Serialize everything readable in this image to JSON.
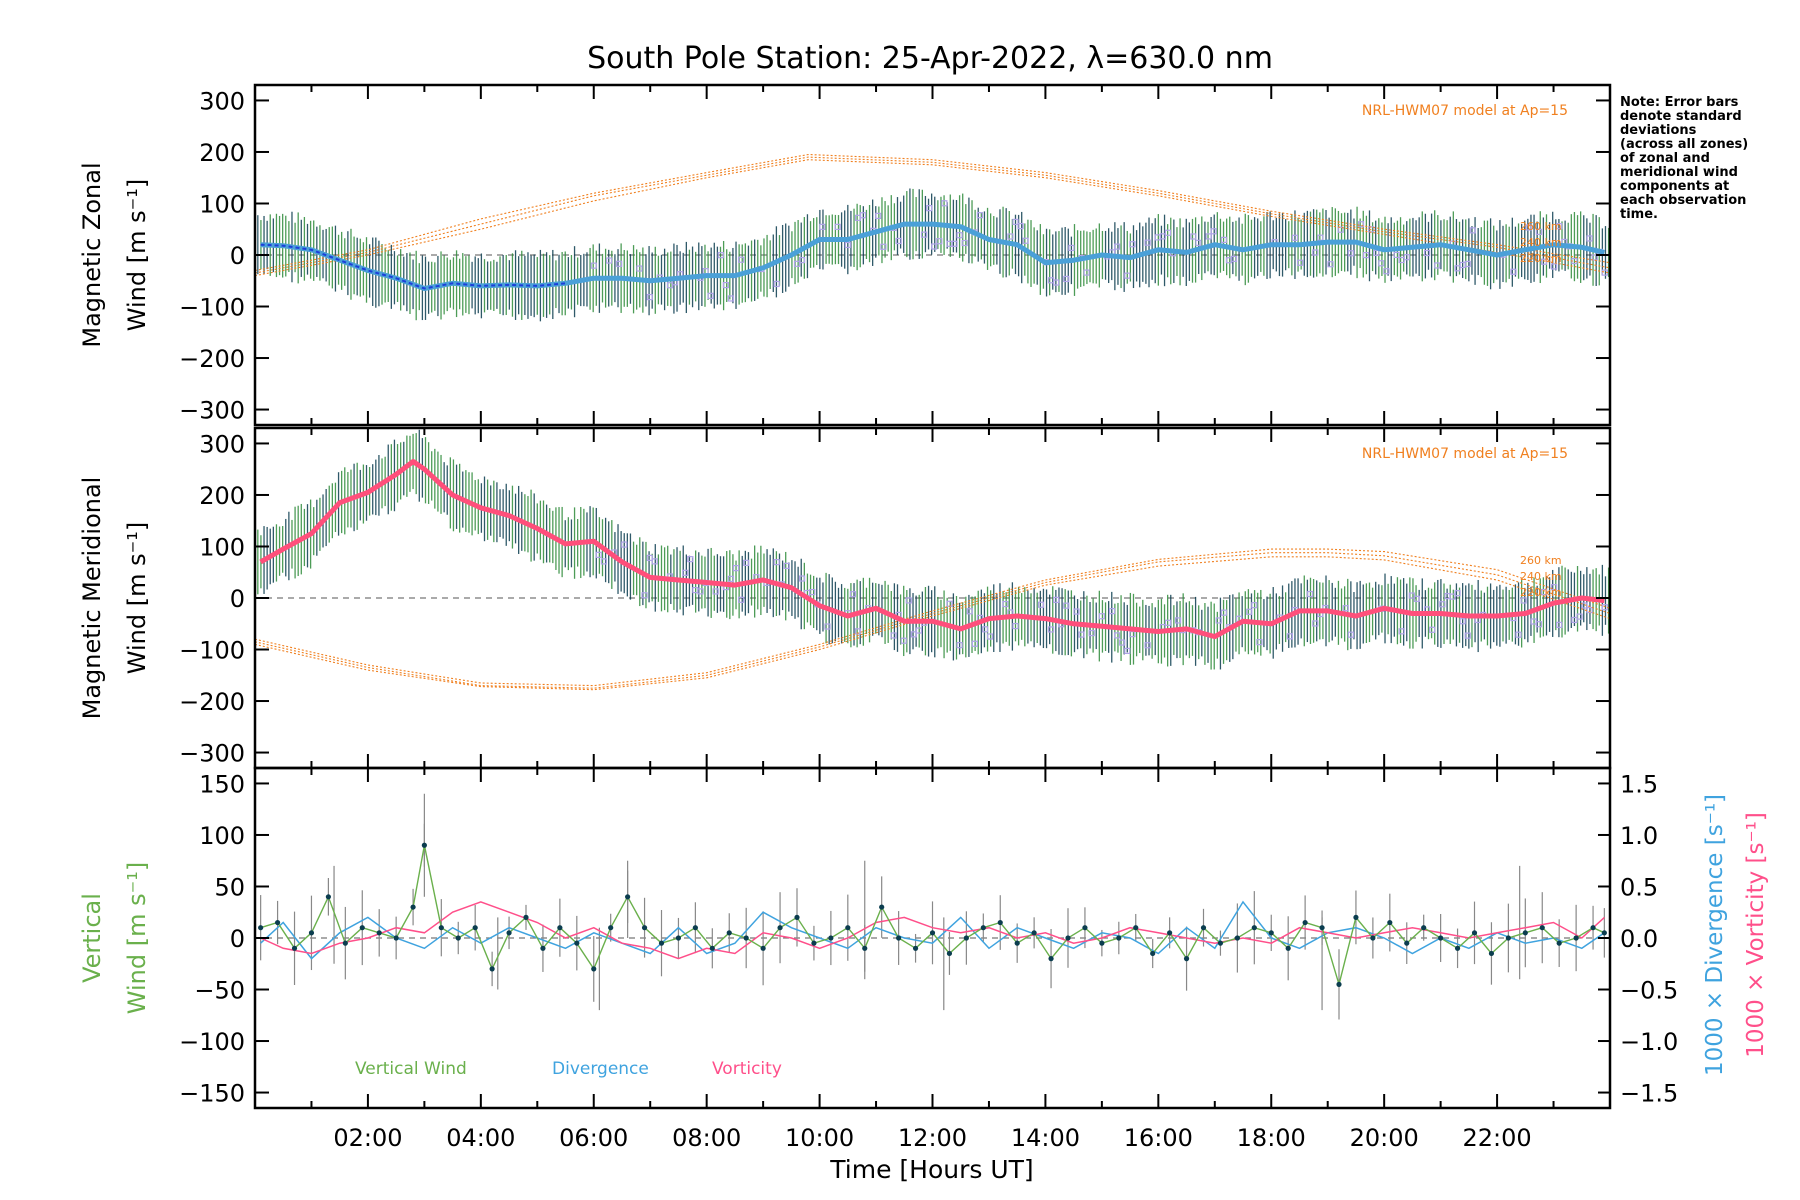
{
  "title": "South Pole Station: 25-Apr-2022, λ=630.0 nm",
  "note_lines": [
    "Note: Error bars",
    "denote standard",
    "deviations",
    "(across all zones)",
    "of zonal and",
    "meridional wind",
    "components at",
    "each observation",
    "time."
  ],
  "colors": {
    "zonal_line": "#4aa0d8",
    "zonal_highlight": "#1d3fd9",
    "meridional_line": "#ff4f7b",
    "model": "#f08020",
    "vertical": "#6ab04c",
    "divergence": "#3fa3df",
    "vorticity": "#ff4f8a",
    "errorbar_dark": "#0b3d4f",
    "errorbar_green": "#2e8b3a",
    "scatter": "#b0a4e8"
  },
  "chart_data": [
    {
      "type": "line",
      "panel": "zonal",
      "ylabel_line1": "Magnetic Zonal",
      "ylabel_line2": "Wind [m s⁻¹]",
      "ylim": [
        -330,
        330
      ],
      "xlim": [
        0,
        24
      ],
      "yticks": [
        "300",
        "200",
        "100",
        "0",
        "−100",
        "−200",
        "−300"
      ],
      "ytick_values": [
        300,
        200,
        100,
        0,
        -100,
        -200,
        -300
      ],
      "model_label": "NRL-HWM07 model at Ap=15",
      "model_alt_labels": [
        "260 km",
        "240 km",
        "220 km"
      ],
      "series": [
        {
          "name": "Zonal wind",
          "x": [
            0.1,
            0.5,
            1.0,
            1.5,
            2.0,
            2.5,
            3.0,
            3.5,
            4.0,
            4.5,
            5.0,
            5.5,
            6.0,
            6.5,
            7.0,
            7.5,
            8.0,
            8.5,
            9.0,
            9.5,
            10.0,
            10.5,
            11.0,
            11.5,
            12.0,
            12.5,
            13.0,
            13.5,
            14.0,
            14.5,
            15.0,
            15.5,
            16.0,
            16.5,
            17.0,
            17.5,
            18.0,
            18.5,
            19.0,
            19.5,
            20.0,
            20.5,
            21.0,
            21.5,
            22.0,
            22.5,
            23.0,
            23.5,
            23.9
          ],
          "y": [
            20,
            18,
            10,
            -10,
            -30,
            -45,
            -65,
            -55,
            -60,
            -58,
            -60,
            -55,
            -45,
            -45,
            -50,
            -45,
            -40,
            -40,
            -25,
            0,
            30,
            30,
            45,
            60,
            60,
            55,
            30,
            20,
            -15,
            -10,
            0,
            -5,
            10,
            5,
            20,
            10,
            20,
            20,
            25,
            25,
            10,
            15,
            20,
            10,
            0,
            10,
            20,
            15,
            5
          ]
        }
      ],
      "model_curves": [
        {
          "name": "260 km",
          "x": [
            0.0,
            2,
            4,
            6,
            8,
            9.8,
            12,
            14,
            16,
            18,
            20,
            22,
            24
          ],
          "y": [
            -30,
            10,
            70,
            120,
            160,
            195,
            185,
            160,
            125,
            85,
            50,
            20,
            -15
          ]
        },
        {
          "name": "240 km",
          "x": [
            0.0,
            2,
            4,
            6,
            8,
            9.8,
            12,
            14,
            16,
            18,
            20,
            22,
            24
          ],
          "y": [
            -35,
            5,
            60,
            115,
            155,
            190,
            180,
            155,
            120,
            80,
            45,
            15,
            -25
          ]
        },
        {
          "name": "220 km",
          "x": [
            0.0,
            2,
            4,
            6,
            8,
            9.8,
            12,
            14,
            16,
            18,
            20,
            22,
            24
          ],
          "y": [
            -40,
            0,
            50,
            105,
            150,
            185,
            175,
            150,
            115,
            75,
            40,
            5,
            -35
          ]
        }
      ]
    },
    {
      "type": "line",
      "panel": "meridional",
      "ylabel_line1": "Magnetic Meridional",
      "ylabel_line2": "Wind [m s⁻¹]",
      "ylim": [
        -330,
        330
      ],
      "xlim": [
        0,
        24
      ],
      "yticks": [
        "300",
        "200",
        "100",
        "0",
        "−100",
        "−200",
        "−300"
      ],
      "ytick_values": [
        300,
        200,
        100,
        0,
        -100,
        -200,
        -300
      ],
      "model_label": "NRL-HWM07 model at Ap=15",
      "model_alt_labels": [
        "260 km",
        "240 km",
        "220 km"
      ],
      "series": [
        {
          "name": "Meridional wind",
          "x": [
            0.1,
            0.5,
            1.0,
            1.5,
            2.0,
            2.5,
            2.8,
            3.0,
            3.5,
            4.0,
            4.5,
            5.0,
            5.5,
            6.0,
            6.5,
            7.0,
            7.5,
            8.0,
            8.5,
            9.0,
            9.5,
            10.0,
            10.5,
            11.0,
            11.5,
            12.0,
            12.5,
            13.0,
            13.5,
            14.0,
            14.5,
            15.0,
            15.5,
            16.0,
            16.5,
            17.0,
            17.5,
            18.0,
            18.5,
            19.0,
            19.5,
            20.0,
            20.5,
            21.0,
            21.5,
            22.0,
            22.5,
            23.0,
            23.5,
            23.9
          ],
          "y": [
            70,
            95,
            125,
            185,
            205,
            240,
            265,
            250,
            200,
            175,
            160,
            135,
            105,
            110,
            70,
            40,
            35,
            30,
            25,
            35,
            20,
            -15,
            -35,
            -20,
            -45,
            -45,
            -60,
            -40,
            -35,
            -40,
            -50,
            -55,
            -60,
            -65,
            -60,
            -75,
            -45,
            -50,
            -25,
            -25,
            -35,
            -20,
            -30,
            -30,
            -35,
            -35,
            -30,
            -10,
            0,
            -5
          ]
        }
      ],
      "model_curves": [
        {
          "name": "260 km",
          "x": [
            0.0,
            2,
            4,
            6,
            8,
            10,
            12,
            14,
            16,
            18,
            19,
            20,
            22,
            24
          ],
          "y": [
            -80,
            -130,
            -165,
            -170,
            -145,
            -90,
            -25,
            35,
            75,
            95,
            95,
            90,
            55,
            -20
          ]
        },
        {
          "name": "240 km",
          "x": [
            0.0,
            2,
            4,
            6,
            8,
            10,
            12,
            14,
            16,
            18,
            19,
            20,
            22,
            24
          ],
          "y": [
            -85,
            -135,
            -170,
            -175,
            -150,
            -95,
            -30,
            30,
            70,
            88,
            88,
            82,
            45,
            -30
          ]
        },
        {
          "name": "220 km",
          "x": [
            0.0,
            2,
            4,
            6,
            8,
            10,
            12,
            14,
            16,
            18,
            19,
            20,
            22,
            24
          ],
          "y": [
            -90,
            -140,
            -172,
            -178,
            -155,
            -100,
            -35,
            25,
            62,
            80,
            80,
            74,
            35,
            -40
          ]
        }
      ]
    },
    {
      "type": "line",
      "panel": "vertical",
      "ylabel_line1": "Vertical",
      "ylabel_line2": "Wind [m s⁻¹]",
      "ylim": [
        -165,
        165
      ],
      "xlim": [
        0,
        24
      ],
      "yticks": [
        "150",
        "100",
        "50",
        "0",
        "−50",
        "−100",
        "−150"
      ],
      "ytick_values": [
        150,
        100,
        50,
        0,
        -50,
        -100,
        -150
      ],
      "y2label_divergence": "1000 × Divergence [s⁻¹]",
      "y2label_vorticity": "1000 × Vorticity [s⁻¹]",
      "y2lim": [
        -1.65,
        1.65
      ],
      "y2ticks": [
        "1.5",
        "1.0",
        "0.5",
        "0.0",
        "−0.5",
        "−1.0",
        "−1.5"
      ],
      "y2tick_values": [
        1.5,
        1.0,
        0.5,
        0.0,
        -0.5,
        -1.0,
        -1.5
      ],
      "legend": [
        "Vertical Wind",
        "Divergence",
        "Vorticity"
      ],
      "xlabel": "Time [Hours UT]",
      "xticks": [
        "02:00",
        "04:00",
        "06:00",
        "08:00",
        "10:00",
        "12:00",
        "14:00",
        "16:00",
        "18:00",
        "20:00",
        "22:00"
      ],
      "xtick_values": [
        2,
        4,
        6,
        8,
        10,
        12,
        14,
        16,
        18,
        20,
        22
      ],
      "series": [
        {
          "name": "Vertical Wind",
          "x": [
            0.1,
            0.4,
            0.7,
            1.0,
            1.3,
            1.6,
            1.9,
            2.2,
            2.5,
            2.8,
            3.0,
            3.3,
            3.6,
            3.9,
            4.2,
            4.5,
            4.8,
            5.1,
            5.4,
            5.7,
            6.0,
            6.3,
            6.6,
            6.9,
            7.2,
            7.5,
            7.8,
            8.1,
            8.4,
            8.7,
            9.0,
            9.3,
            9.6,
            9.9,
            10.2,
            10.5,
            10.8,
            11.1,
            11.4,
            11.7,
            12.0,
            12.3,
            12.6,
            12.9,
            13.2,
            13.5,
            13.8,
            14.1,
            14.4,
            14.7,
            15.0,
            15.3,
            15.6,
            15.9,
            16.2,
            16.5,
            16.8,
            17.1,
            17.4,
            17.7,
            18.0,
            18.3,
            18.6,
            18.9,
            19.2,
            19.5,
            19.8,
            20.1,
            20.4,
            20.7,
            21.0,
            21.3,
            21.6,
            21.9,
            22.2,
            22.5,
            22.8,
            23.1,
            23.4,
            23.7,
            23.9
          ],
          "y": [
            10,
            15,
            -10,
            5,
            40,
            -5,
            10,
            5,
            0,
            30,
            90,
            10,
            0,
            10,
            -30,
            5,
            20,
            -10,
            10,
            -5,
            -30,
            10,
            40,
            10,
            -5,
            0,
            10,
            -10,
            5,
            0,
            -10,
            10,
            20,
            -5,
            0,
            10,
            -10,
            30,
            0,
            -10,
            5,
            -15,
            0,
            10,
            15,
            -5,
            5,
            -20,
            0,
            10,
            -5,
            0,
            10,
            -15,
            5,
            -20,
            10,
            -5,
            0,
            10,
            5,
            -10,
            15,
            10,
            -45,
            20,
            0,
            15,
            -5,
            10,
            0,
            -10,
            5,
            -15,
            0,
            5,
            10,
            -5,
            0,
            10,
            5
          ]
        },
        {
          "name": "Divergence",
          "x": [
            0.1,
            0.5,
            1.0,
            1.5,
            2.0,
            2.5,
            3.0,
            3.5,
            4.0,
            4.5,
            5.0,
            5.5,
            6.0,
            6.5,
            7.0,
            7.5,
            8.0,
            8.5,
            9.0,
            9.5,
            10.0,
            10.5,
            11.0,
            11.5,
            12.0,
            12.5,
            13.0,
            13.5,
            14.0,
            14.5,
            15.0,
            15.5,
            16.0,
            16.5,
            17.0,
            17.5,
            18.0,
            18.5,
            19.0,
            19.5,
            20.0,
            20.5,
            21.0,
            21.5,
            22.0,
            22.5,
            23.0,
            23.5,
            23.9
          ],
          "y": [
            -0.05,
            0.15,
            -0.2,
            0.05,
            0.2,
            0.0,
            -0.1,
            0.1,
            -0.05,
            0.1,
            0.0,
            -0.1,
            0.05,
            -0.05,
            -0.15,
            0.1,
            -0.15,
            -0.05,
            0.25,
            0.1,
            0.0,
            -0.1,
            0.1,
            0.0,
            -0.05,
            0.2,
            -0.1,
            0.1,
            0.0,
            -0.1,
            0.05,
            0.0,
            -0.15,
            0.1,
            -0.1,
            0.35,
            0.0,
            -0.1,
            0.05,
            0.1,
            0.0,
            -0.15,
            0.0,
            -0.1,
            0.05,
            -0.05,
            0.0,
            -0.1,
            0.05
          ]
        },
        {
          "name": "Vorticity",
          "x": [
            0.1,
            0.5,
            1.0,
            1.5,
            2.0,
            2.5,
            3.0,
            3.5,
            4.0,
            4.5,
            5.0,
            5.5,
            6.0,
            6.5,
            7.0,
            7.5,
            8.0,
            8.5,
            9.0,
            9.5,
            10.0,
            10.5,
            11.0,
            11.5,
            12.0,
            12.5,
            13.0,
            13.5,
            14.0,
            14.5,
            15.0,
            15.5,
            16.0,
            16.5,
            17.0,
            17.5,
            18.0,
            18.5,
            19.0,
            19.5,
            20.0,
            20.5,
            21.0,
            21.5,
            22.0,
            22.5,
            23.0,
            23.5,
            23.9
          ],
          "y": [
            0.0,
            -0.1,
            -0.15,
            -0.05,
            0.0,
            0.1,
            0.05,
            0.25,
            0.35,
            0.25,
            0.15,
            0.0,
            0.1,
            -0.05,
            -0.1,
            -0.2,
            -0.1,
            -0.15,
            0.05,
            0.0,
            -0.1,
            0.0,
            0.15,
            0.2,
            0.1,
            0.05,
            0.1,
            0.0,
            0.05,
            -0.05,
            0.0,
            0.1,
            0.05,
            0.0,
            -0.05,
            0.0,
            -0.05,
            0.1,
            0.05,
            0.0,
            0.05,
            0.1,
            0.05,
            0.0,
            0.05,
            0.1,
            0.15,
            0.0,
            0.2
          ]
        }
      ],
      "error_bars": [
        {
          "x": 1.4,
          "lo": -25,
          "hi": 70
        },
        {
          "x": 3.0,
          "lo": 40,
          "hi": 140
        },
        {
          "x": 4.3,
          "lo": -50,
          "hi": 20
        },
        {
          "x": 6.1,
          "lo": -70,
          "hi": 10
        },
        {
          "x": 6.6,
          "lo": 0,
          "hi": 75
        },
        {
          "x": 10.8,
          "lo": -40,
          "hi": 75
        },
        {
          "x": 12.2,
          "lo": -70,
          "hi": 20
        },
        {
          "x": 22.4,
          "lo": -40,
          "hi": 70
        },
        {
          "x": 18.9,
          "lo": -70,
          "hi": 20
        }
      ]
    }
  ]
}
